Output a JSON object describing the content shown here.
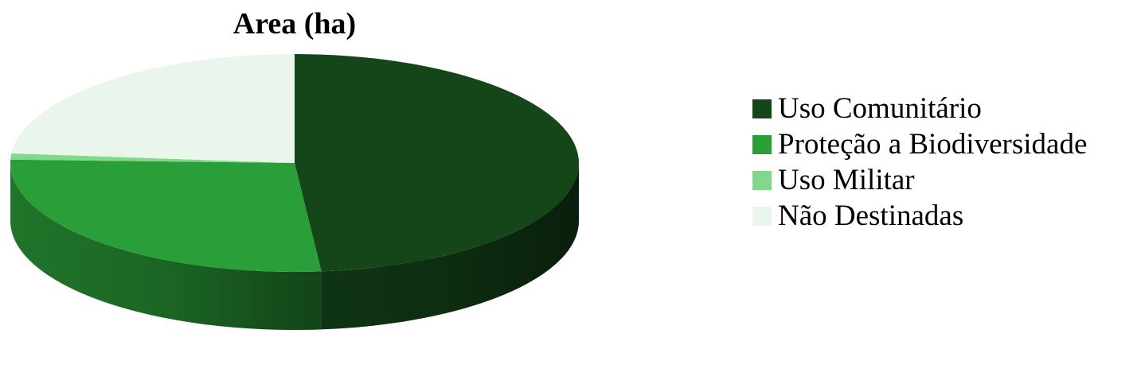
{
  "chart_data": {
    "type": "pie",
    "title": "Area (ha)",
    "categories": [
      "Uso Comunitário",
      "Proteção a Biodiversidade",
      "Uso Militar",
      "Não Destinadas"
    ],
    "values": [
      48.5,
      27.0,
      0.9,
      23.6
    ],
    "colors": [
      "#14461a",
      "#2a9e38",
      "#80d98a",
      "#eaf5ec"
    ],
    "legend_position": "right",
    "style": "3d"
  }
}
